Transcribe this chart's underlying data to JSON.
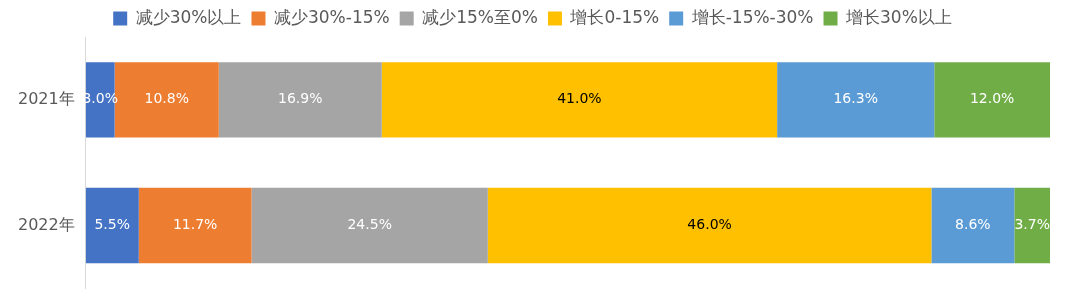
{
  "chart_data": {
    "type": "bar",
    "orientation": "horizontal",
    "stacked": true,
    "categories": [
      "2021年",
      "2022年"
    ],
    "series": [
      {
        "name": "减少30%以上",
        "color": "#4472c4",
        "values": [
          3.0,
          5.5
        ],
        "value_labels": [
          "3.0%",
          "5.5%"
        ]
      },
      {
        "name": "减少30%-15%",
        "color": "#ed7d31",
        "values": [
          10.8,
          11.7
        ],
        "value_labels": [
          "10.8%",
          "11.7%"
        ]
      },
      {
        "name": "减少15%至0%",
        "color": "#a5a5a5",
        "values": [
          16.9,
          24.5
        ],
        "value_labels": [
          "16.9%",
          "24.5%"
        ]
      },
      {
        "name": "增长0-15%",
        "color": "#ffc000",
        "values": [
          41.0,
          46.0
        ],
        "value_labels": [
          "41.0%",
          "46.0%"
        ]
      },
      {
        "name": "增长-15%-30%",
        "color": "#5b9bd5",
        "values": [
          16.3,
          8.6
        ],
        "value_labels": [
          "16.3%",
          "8.6%"
        ]
      },
      {
        "name": "增长30%以上",
        "color": "#70ad47",
        "values": [
          12.0,
          3.7
        ],
        "value_labels": [
          "12.0%",
          "3.7%"
        ]
      }
    ],
    "tick_labels": "y",
    "legend": "top"
  }
}
